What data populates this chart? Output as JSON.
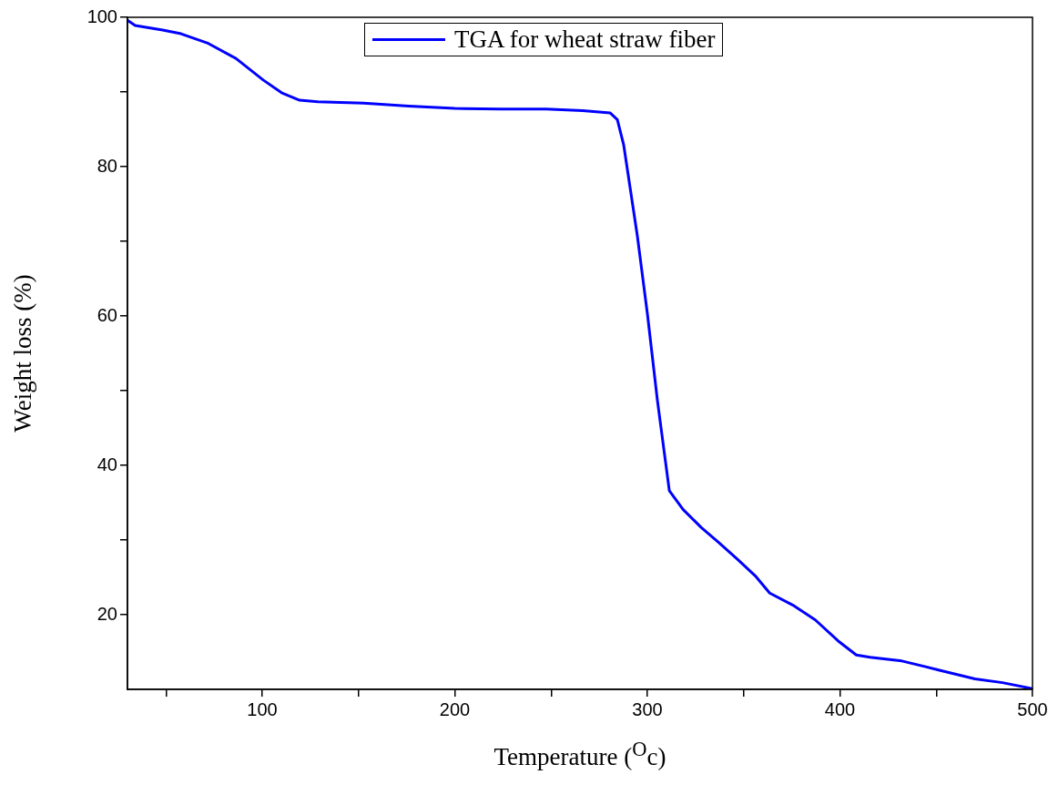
{
  "chart_data": {
    "type": "line",
    "xlabel": "Temperature ($^{O}$c)",
    "ylabel": "Weight loss (%)",
    "xlim": [
      30,
      500
    ],
    "ylim": [
      10,
      100
    ],
    "xticks": [
      {
        "value": 50,
        "label": null
      },
      100,
      {
        "value": 150,
        "label": null
      },
      200,
      {
        "value": 250,
        "label": null
      },
      300,
      {
        "value": 350,
        "label": null
      },
      400,
      {
        "value": 450,
        "label": null
      },
      500
    ],
    "yticks": [
      20,
      {
        "value": 30,
        "label": null
      },
      40,
      {
        "value": 50,
        "label": null
      },
      60,
      {
        "value": 70,
        "label": null
      },
      80,
      {
        "value": 90,
        "label": null
      },
      100
    ],
    "grid": false,
    "legend": "top",
    "marker": "none",
    "line_style": "solid",
    "series": [
      {
        "name": "TGA for wheat straw fiber",
        "color": "#0000ff",
        "x": [
          30,
          34,
          48.3,
          57.8,
          72,
          86.3,
          100.5,
          110,
          119.4,
          128.9,
          152.6,
          176,
          200,
          223.7,
          247.4,
          266.4,
          280.6,
          284.4,
          287.7,
          294.8,
          300,
          305.2,
          311.4,
          318.5,
          327.9,
          337.4,
          346.9,
          356.4,
          363.5,
          375.4,
          387.2,
          399,
          408.5,
          415.6,
          432.2,
          451.2,
          470.1,
          484.4,
          500
        ],
        "values": [
          99.6,
          98.9,
          98.3,
          97.8,
          96.5,
          94.5,
          91.6,
          89.9,
          88.9,
          88.7,
          88.5,
          88.1,
          87.8,
          87.7,
          87.7,
          87.5,
          87.2,
          86.3,
          82.9,
          70.7,
          60.3,
          48.7,
          36.6,
          34.1,
          31.7,
          29.6,
          27.4,
          25.1,
          22.9,
          21.3,
          19.3,
          16.5,
          14.6,
          14.3,
          13.8,
          12.6,
          11.4,
          10.9,
          10.1
        ]
      }
    ]
  }
}
